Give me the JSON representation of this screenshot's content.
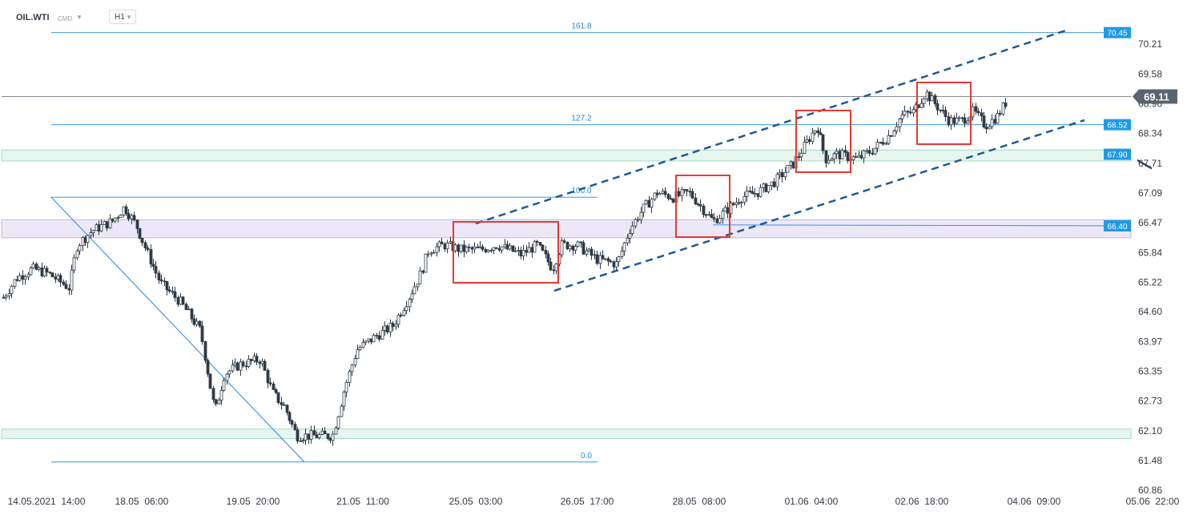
{
  "toolbar": {
    "symbol": "OIL.WTI",
    "instrument_type": "CMD",
    "timeframe": "H1"
  },
  "chart_data": {
    "type": "candlestick",
    "y_ticks": [
      "70.21",
      "69.58",
      "68.96",
      "68.34",
      "67.71",
      "67.09",
      "66.47",
      "65.84",
      "65.22",
      "64.60",
      "63.97",
      "63.35",
      "62.73",
      "62.10",
      "61.48",
      "60.86"
    ],
    "ylim": [
      60.86,
      70.45
    ],
    "x_labels": [
      "14.05.2021  14:00",
      "18.05  06:00",
      "19.05  20:00",
      "21.05  11:00",
      "25.05  03:00",
      "26.05  17:00",
      "28.05  08:00",
      "01.06  04:00",
      "02.06  18:00",
      "04.06  09:00",
      "05.06  22:00"
    ],
    "last_price": "69.11",
    "price_tags": [
      {
        "value": 70.45,
        "label": "70.45"
      },
      {
        "value": 68.52,
        "label": "68.52"
      },
      {
        "value": 67.9,
        "label": "67.90"
      },
      {
        "value": 66.4,
        "label": "66.40"
      }
    ],
    "fibonacci": [
      {
        "level": "161.8",
        "price": 70.45
      },
      {
        "level": "127.2",
        "price": 68.52
      },
      {
        "level": "100.0",
        "price": 67.0
      },
      {
        "level": "0.0",
        "price": 61.45
      }
    ],
    "zones": [
      {
        "name": "resistance-67.90",
        "from": 67.76,
        "to": 67.99,
        "color": "#e8f6f0"
      },
      {
        "name": "zone-66.40",
        "from": 66.15,
        "to": 66.53,
        "color": "#ece8f7"
      },
      {
        "name": "support-62.10",
        "from": 61.94,
        "to": 62.14,
        "color": "#e8f6f0"
      }
    ],
    "colors": {
      "candle": "#2f3a45",
      "axis_text": "#333a44",
      "fib_line": "#1e88e5",
      "channel": "#1f5a96",
      "box": "#e53935",
      "tag_bg": "#1e9be8",
      "last_price_bg": "#5a6470"
    }
  }
}
